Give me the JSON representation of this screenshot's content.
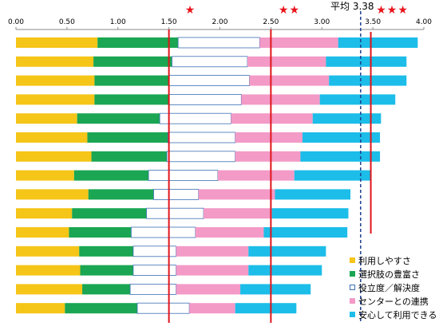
{
  "chart_data": {
    "type": "bar",
    "orientation": "horizontal",
    "stacked": true,
    "xlim": [
      0,
      4
    ],
    "x_ticks": [
      "0.00",
      "0.50",
      "1.00",
      "1.50",
      "2.00",
      "2.50",
      "3.00",
      "3.50",
      "4.00"
    ],
    "average": {
      "label": "平均 3.38",
      "value": 3.38
    },
    "ratings": [
      {
        "stars": "★",
        "x": 1.72
      },
      {
        "stars": "★★",
        "x": 2.7
      },
      {
        "stars": "★★★",
        "x": 3.72
      }
    ],
    "reference_lines": [
      1.5,
      2.5,
      3.48
    ],
    "series": [
      {
        "name": "利用しやすさ",
        "color": "#f5c518",
        "values": [
          0.8,
          0.76,
          0.77,
          0.77,
          0.6,
          0.7,
          0.74,
          0.57,
          0.71,
          0.55,
          0.52,
          0.62,
          0.63,
          0.65,
          0.48
        ]
      },
      {
        "name": "選択肢の豊富さ",
        "color": "#1aa652",
        "values": [
          0.79,
          0.77,
          0.73,
          0.73,
          0.81,
          0.79,
          0.74,
          0.73,
          0.64,
          0.73,
          0.61,
          0.53,
          0.52,
          0.47,
          0.71
        ]
      },
      {
        "name": "役立度／解決度",
        "color": "#ffffff",
        "values": [
          0.8,
          0.74,
          0.79,
          0.71,
          0.7,
          0.66,
          0.67,
          0.68,
          0.44,
          0.56,
          0.63,
          0.42,
          0.42,
          0.45,
          0.51
        ]
      },
      {
        "name": "センターとの連携",
        "color": "#f39ac7",
        "values": [
          0.77,
          0.77,
          0.78,
          0.77,
          0.8,
          0.66,
          0.64,
          0.75,
          0.75,
          0.67,
          0.67,
          0.71,
          0.71,
          0.63,
          0.45
        ]
      },
      {
        "name": "安心して利用できる",
        "color": "#1cbde8",
        "values": [
          0.78,
          0.79,
          0.76,
          0.74,
          0.67,
          0.76,
          0.78,
          0.75,
          0.74,
          0.75,
          0.82,
          0.76,
          0.72,
          0.69,
          0.6
        ]
      }
    ]
  }
}
